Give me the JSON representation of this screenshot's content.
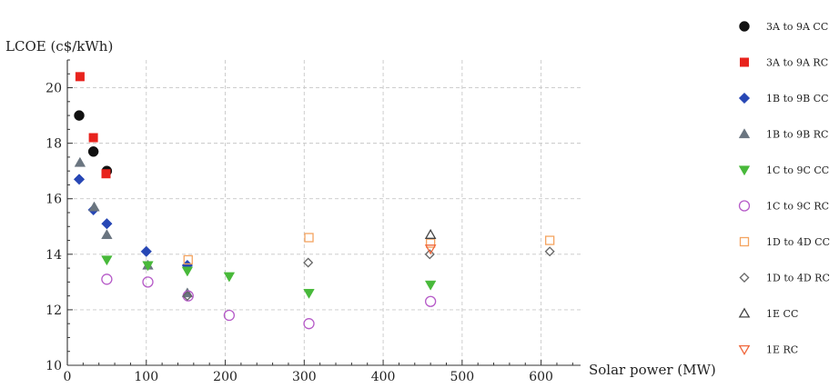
{
  "chart_data": {
    "type": "scatter",
    "title": "",
    "xlabel": "Solar power (MW)",
    "ylabel": "LCOE (c$/kWh)",
    "xlim": [
      0,
      650
    ],
    "ylim": [
      10,
      21
    ],
    "xticks": [
      0,
      100,
      200,
      300,
      400,
      500,
      600
    ],
    "yticks": [
      10,
      12,
      14,
      16,
      18,
      20
    ],
    "grid": true,
    "legend_position": "right",
    "series": [
      {
        "name": "3A to 9A  CC",
        "marker": "circle-filled",
        "color": "#111111",
        "points": [
          [
            15,
            19.0
          ],
          [
            33,
            17.7
          ],
          [
            50,
            17.0
          ]
        ]
      },
      {
        "name": "3A to 9A  RC",
        "marker": "square-filled",
        "color": "#e8231d",
        "points": [
          [
            16,
            20.4
          ],
          [
            33,
            18.2
          ],
          [
            49,
            16.9
          ]
        ]
      },
      {
        "name": "1B to 9B  CC",
        "marker": "diamond-filled",
        "color": "#2747b5",
        "points": [
          [
            15,
            16.7
          ],
          [
            33,
            15.6
          ],
          [
            50,
            15.1
          ],
          [
            100,
            14.1
          ],
          [
            152,
            13.6
          ]
        ]
      },
      {
        "name": "1B to 9B  RC",
        "marker": "triangle-up-filled",
        "color": "#6a7580",
        "points": [
          [
            16,
            17.3
          ],
          [
            34,
            15.7
          ],
          [
            50,
            14.7
          ],
          [
            102,
            13.6
          ],
          [
            152,
            12.6
          ]
        ]
      },
      {
        "name": "1C to 9C  CC",
        "marker": "triangle-down-filled",
        "color": "#48b93a",
        "points": [
          [
            50,
            13.8
          ],
          [
            102,
            13.6
          ],
          [
            152,
            13.4
          ],
          [
            205,
            13.2
          ],
          [
            306,
            12.6
          ],
          [
            460,
            12.9
          ]
        ]
      },
      {
        "name": "1C to 9C  RC",
        "marker": "circle-open",
        "color": "#b65ac8",
        "points": [
          [
            50,
            13.1
          ],
          [
            102,
            13.0
          ],
          [
            153,
            12.5
          ],
          [
            205,
            11.8
          ],
          [
            306,
            11.5
          ],
          [
            460,
            12.3
          ]
        ]
      },
      {
        "name": "1D to 4D  CC",
        "marker": "square-open",
        "color": "#f4a460",
        "points": [
          [
            153,
            13.8
          ],
          [
            306,
            14.6
          ],
          [
            460,
            14.4
          ],
          [
            611,
            14.5
          ]
        ]
      },
      {
        "name": "1D to 4D  RC",
        "marker": "diamond-open",
        "color": "#666666",
        "points": [
          [
            152,
            12.5
          ],
          [
            305,
            13.7
          ],
          [
            459,
            14.0
          ],
          [
            611,
            14.1
          ]
        ]
      },
      {
        "name": "1E  CC",
        "marker": "triangle-up-open",
        "color": "#444444",
        "points": [
          [
            460,
            14.7
          ]
        ]
      },
      {
        "name": "1E  RC",
        "marker": "triangle-down-open",
        "color": "#f0663a",
        "points": [
          [
            460,
            14.2
          ]
        ]
      }
    ]
  }
}
